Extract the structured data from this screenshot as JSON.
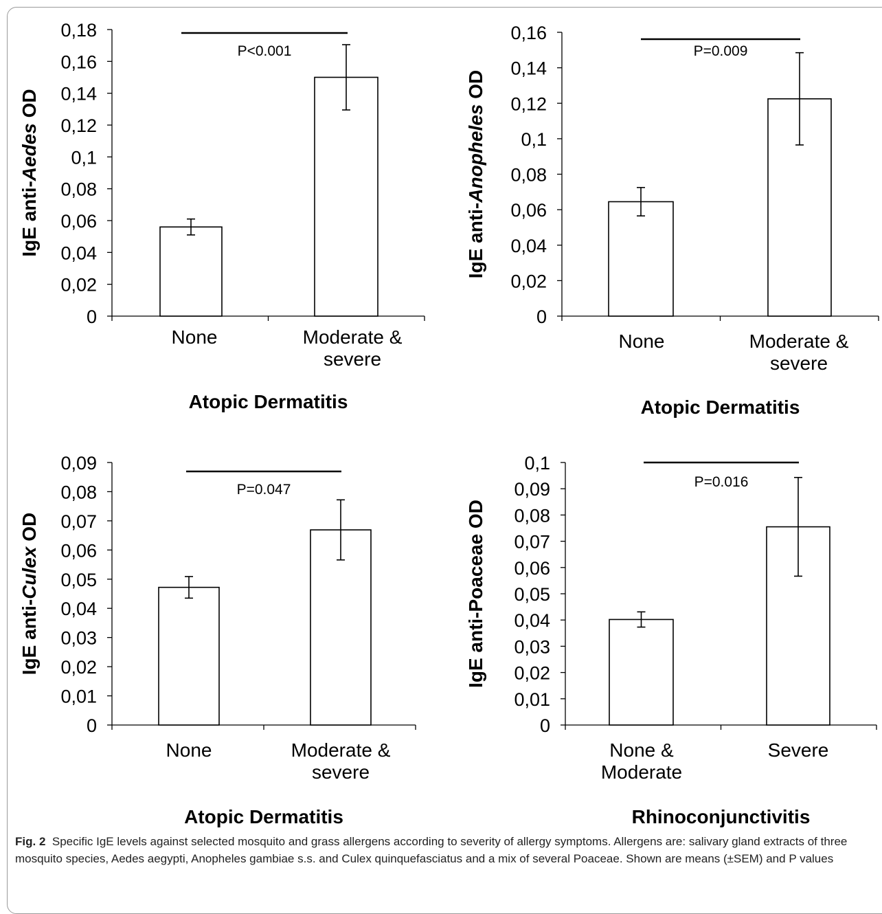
{
  "chart_data": [
    {
      "type": "bar",
      "ylabel_prefix": "IgE anti-",
      "ylabel_italic": "Aedes",
      "ylabel_suffix": " OD",
      "xlabel": "Atopic Dermatitis",
      "categories": [
        [
          "None"
        ],
        [
          "Moderate &",
          "severe"
        ]
      ],
      "values": [
        0.056,
        0.15
      ],
      "errors": [
        0.005,
        0.0205
      ],
      "ylim": [
        0,
        0.18
      ],
      "yticks": [
        "0",
        "0,02",
        "0,04",
        "0,06",
        "0,08",
        "0,1",
        "0,12",
        "0,14",
        "0,16",
        "0,18"
      ],
      "pvalue": "P<0.001"
    },
    {
      "type": "bar",
      "ylabel_prefix": "IgE anti-",
      "ylabel_italic": "Anopheles",
      "ylabel_suffix": " OD",
      "xlabel": "Atopic Dermatitis",
      "categories": [
        [
          "None"
        ],
        [
          "Moderate &",
          "severe"
        ]
      ],
      "values": [
        0.0645,
        0.1225
      ],
      "errors": [
        0.008,
        0.026
      ],
      "ylim": [
        0,
        0.16
      ],
      "yticks": [
        "0",
        "0,02",
        "0,04",
        "0,06",
        "0,08",
        "0,1",
        "0,12",
        "0,14",
        "0,16"
      ],
      "pvalue": "P=0.009"
    },
    {
      "type": "bar",
      "ylabel_prefix": "IgE anti-",
      "ylabel_italic": "Culex",
      "ylabel_suffix": " OD",
      "xlabel": "Atopic Dermatitis",
      "categories": [
        [
          "None"
        ],
        [
          "Moderate &",
          "severe"
        ]
      ],
      "values": [
        0.0472,
        0.0669
      ],
      "errors": [
        0.0037,
        0.0103
      ],
      "ylim": [
        0,
        0.09
      ],
      "yticks": [
        "0",
        "0,01",
        "0,02",
        "0,03",
        "0,04",
        "0,05",
        "0,06",
        "0,07",
        "0,08",
        "0,09"
      ],
      "pvalue": "P=0.047"
    },
    {
      "type": "bar",
      "ylabel_prefix": "IgE anti-Poaceae OD",
      "ylabel_italic": "",
      "ylabel_suffix": "",
      "xlabel": "Rhinoconjunctivitis",
      "categories": [
        [
          "None &",
          "Moderate"
        ],
        [
          "Severe"
        ]
      ],
      "values": [
        0.0402,
        0.0755
      ],
      "errors": [
        0.0029,
        0.0188
      ],
      "ylim": [
        0,
        0.1
      ],
      "yticks": [
        "0",
        "0,01",
        "0,02",
        "0,03",
        "0,04",
        "0,05",
        "0,06",
        "0,07",
        "0,08",
        "0,09",
        "0,1"
      ],
      "pvalue": "P=0.016"
    }
  ],
  "caption": {
    "label": "Fig. 2",
    "text": "Specific IgE levels against selected mosquito and grass allergens according to severity of allergy symptoms. Allergens are: salivary gland extracts of three mosquito species, Aedes aegypti, Anopheles gambiae s.s. and Culex quinquefasciatus and a mix of several Poaceae. Shown are means (±SEM) and P values"
  }
}
